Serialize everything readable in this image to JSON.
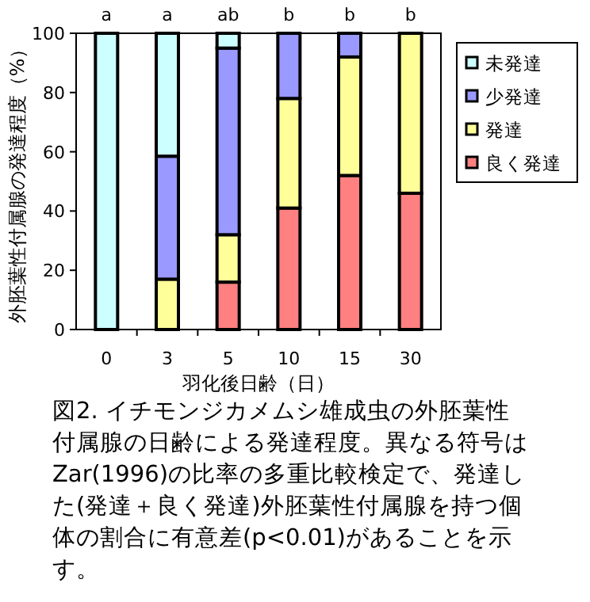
{
  "chart_data": {
    "type": "bar",
    "stacked": true,
    "xlabel": "羽化後日齢（日）",
    "ylabel": "外胚葉性付属腺の発達程度（%）",
    "categories": [
      "0",
      "3",
      "5",
      "10",
      "15",
      "30"
    ],
    "series": [
      {
        "name": "良く発達",
        "color": "#ff8080",
        "values": [
          0,
          0,
          16,
          41,
          52,
          46
        ]
      },
      {
        "name": "発達",
        "color": "#ffff99",
        "values": [
          0,
          17,
          16,
          37,
          40,
          54
        ]
      },
      {
        "name": "少発達",
        "color": "#9999ff",
        "values": [
          0,
          41.5,
          63,
          22,
          8,
          0
        ]
      },
      {
        "name": "未発達",
        "color": "#ccffff",
        "values": [
          100,
          41.5,
          5,
          0,
          0,
          0
        ]
      }
    ],
    "ylim": [
      0,
      100
    ],
    "yticks": [
      0,
      20,
      40,
      60,
      80,
      100
    ],
    "grid": false,
    "legend": "right",
    "annotations": [
      {
        "text": "a",
        "x": "0",
        "y": 100
      },
      {
        "text": "a",
        "x": "3",
        "y": 100
      },
      {
        "text": "ab",
        "x": "5",
        "y": 100
      },
      {
        "text": "b",
        "x": "10",
        "y": 100
      },
      {
        "text": "b",
        "x": "15",
        "y": 100
      },
      {
        "text": "b",
        "x": "30",
        "y": 100
      },
      "図2. イチモンジカメムシ雄成虫の外胚葉性付属腺の日齢による発達程度。異なる符号は Zar(1996)の比率の多重比較検定で、発達した(発達＋良く発達)外胚葉性付属腺を持つ個体の割合に有意差(p<0.01)があることを示す。"
    ]
  }
}
